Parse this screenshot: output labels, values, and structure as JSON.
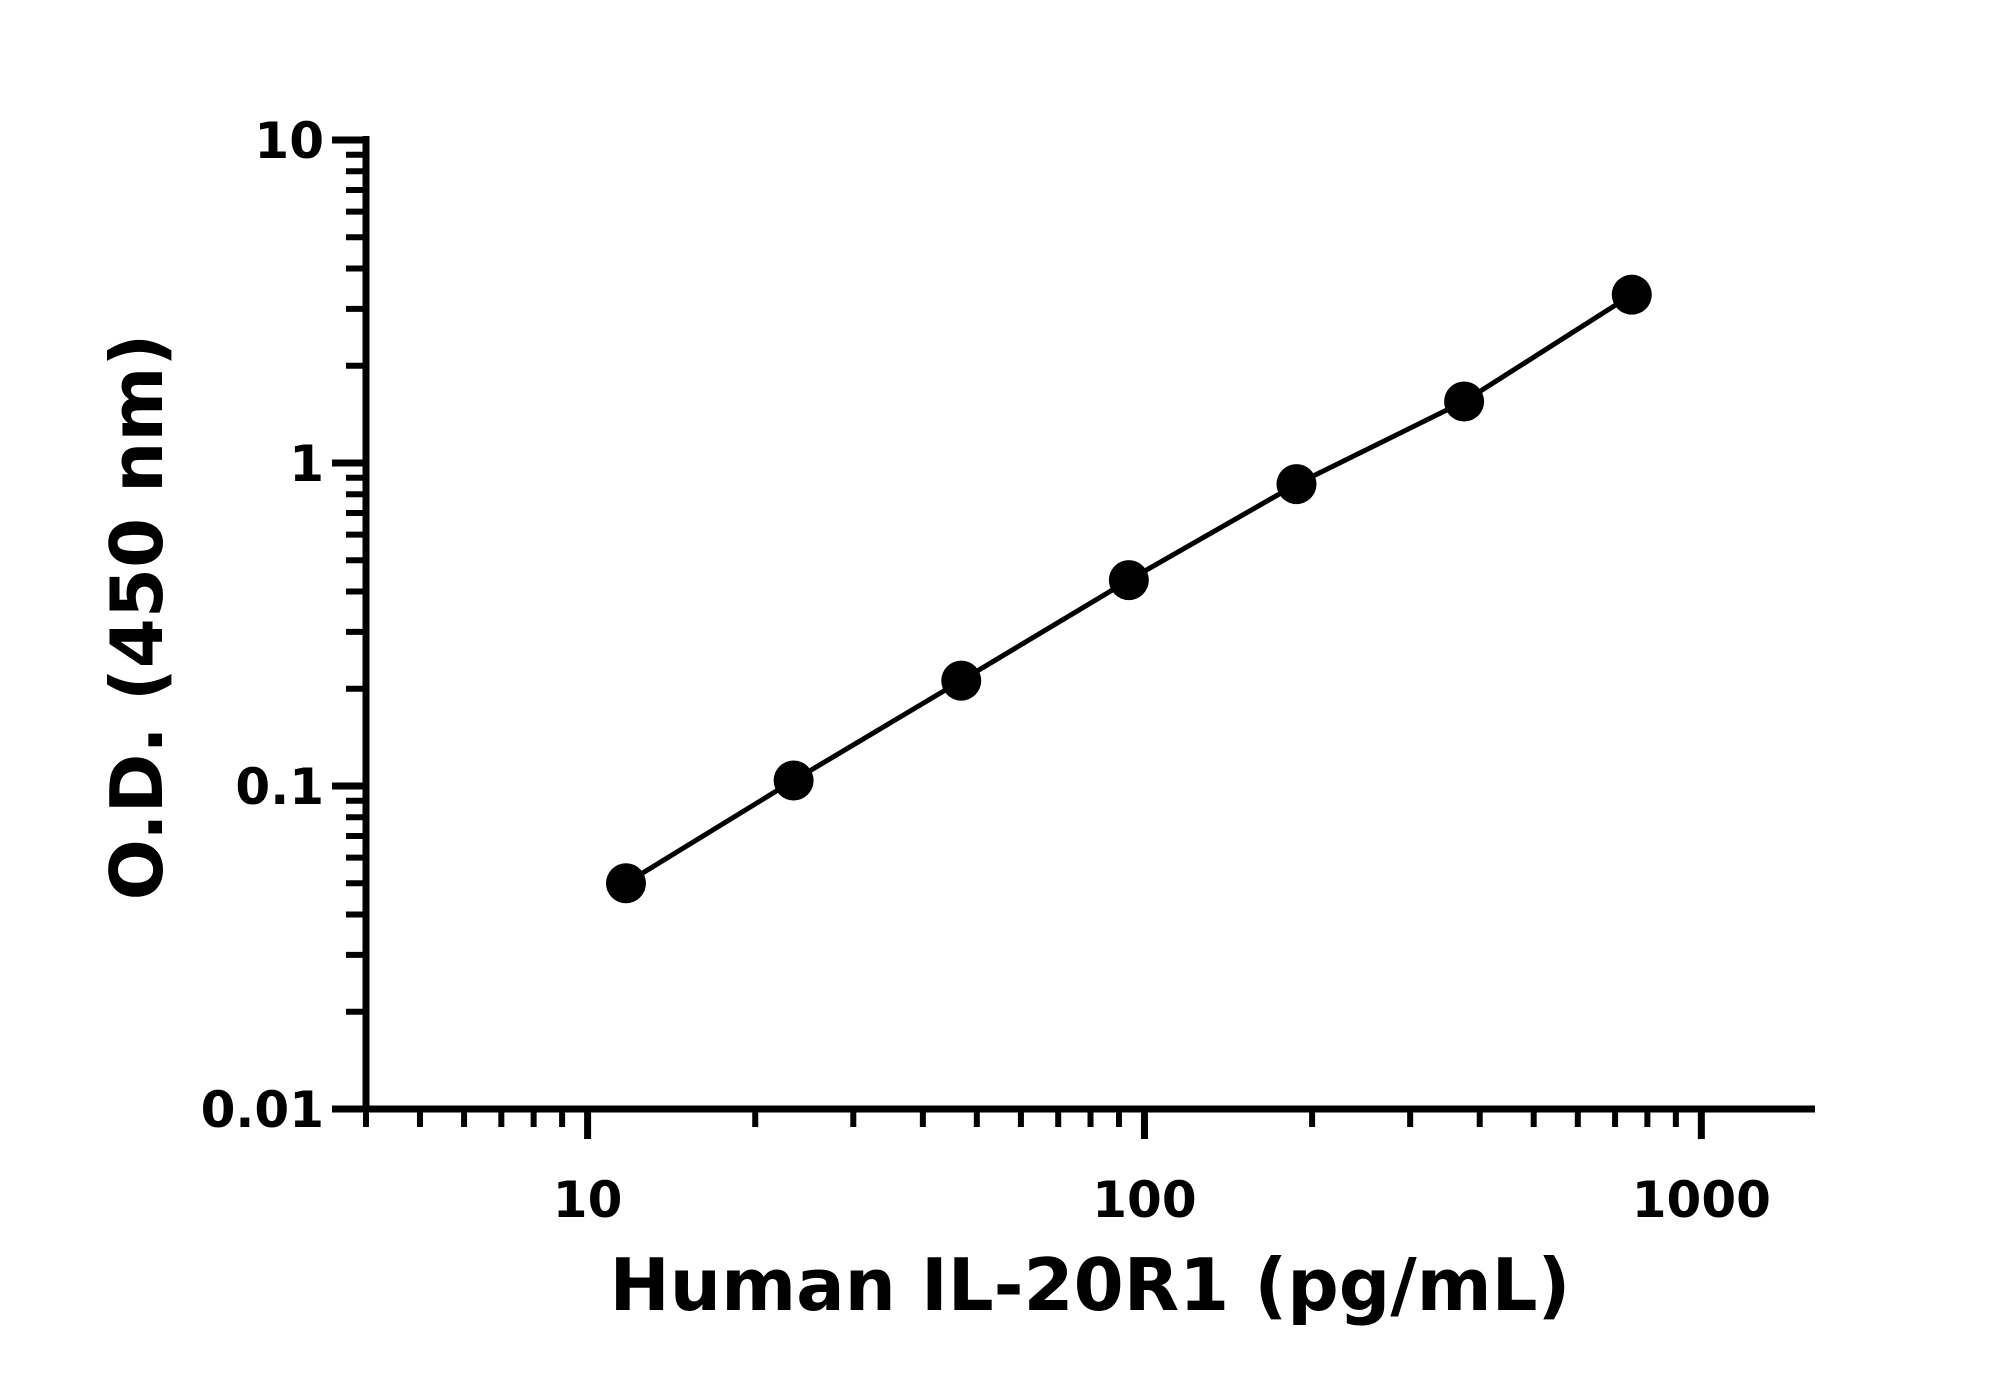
{
  "chart_data": {
    "type": "scatter",
    "title": "",
    "xlabel": "Human IL-20R1 (pg/mL)",
    "ylabel": "O.D. (450 nm)",
    "x_scale": "log",
    "y_scale": "log",
    "xlim": [
      4,
      1600
    ],
    "ylim": [
      0.01,
      10
    ],
    "x_ticks": [
      "10",
      "100",
      "1000"
    ],
    "y_ticks": [
      "10",
      "1",
      "0.1",
      "0.01"
    ],
    "grid": false,
    "legend": "none",
    "fit_line": true,
    "series": [
      {
        "x": [
          11.72,
          23.44,
          46.88,
          93.75,
          187.5,
          375,
          750
        ],
        "y": [
          0.05,
          0.104,
          0.212,
          0.434,
          0.86,
          1.55,
          3.32
        ]
      }
    ],
    "color": "#000000"
  }
}
